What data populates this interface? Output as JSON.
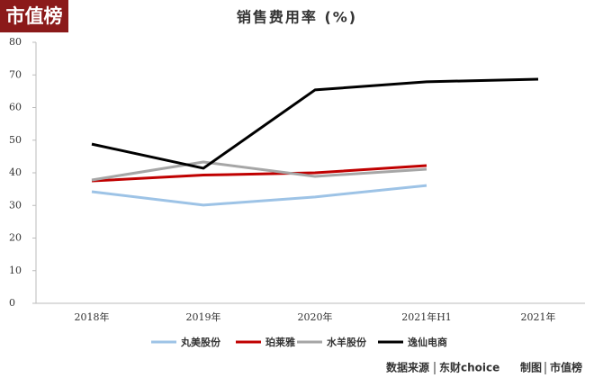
{
  "logo": "市值榜",
  "footer": {
    "source_label": "数据来源",
    "source": "东财choice",
    "credit_label": "制图",
    "credit": "市值榜"
  },
  "chart_data": {
    "type": "line",
    "title": "销售费用率 (%)",
    "categories": [
      "2018年",
      "2019年",
      "2020年",
      "2021年H1",
      "2021年"
    ],
    "series": [
      {
        "name": "丸美股份",
        "color": "#9dc3e6",
        "values": [
          34.2,
          30.1,
          32.6,
          36.1,
          null
        ]
      },
      {
        "name": "珀莱雅",
        "color": "#c00000",
        "values": [
          37.5,
          39.3,
          40.0,
          42.2,
          null
        ]
      },
      {
        "name": "水羊股份",
        "color": "#a6a6a6",
        "values": [
          37.8,
          43.3,
          38.9,
          41.1,
          null
        ]
      },
      {
        "name": "逸仙电商",
        "color": "#000000",
        "values": [
          48.8,
          41.4,
          65.4,
          67.9,
          68.7
        ]
      }
    ],
    "ylim": [
      0,
      80
    ],
    "yticks": [
      0,
      10,
      20,
      30,
      40,
      50,
      60,
      70,
      80
    ],
    "grid": false
  }
}
